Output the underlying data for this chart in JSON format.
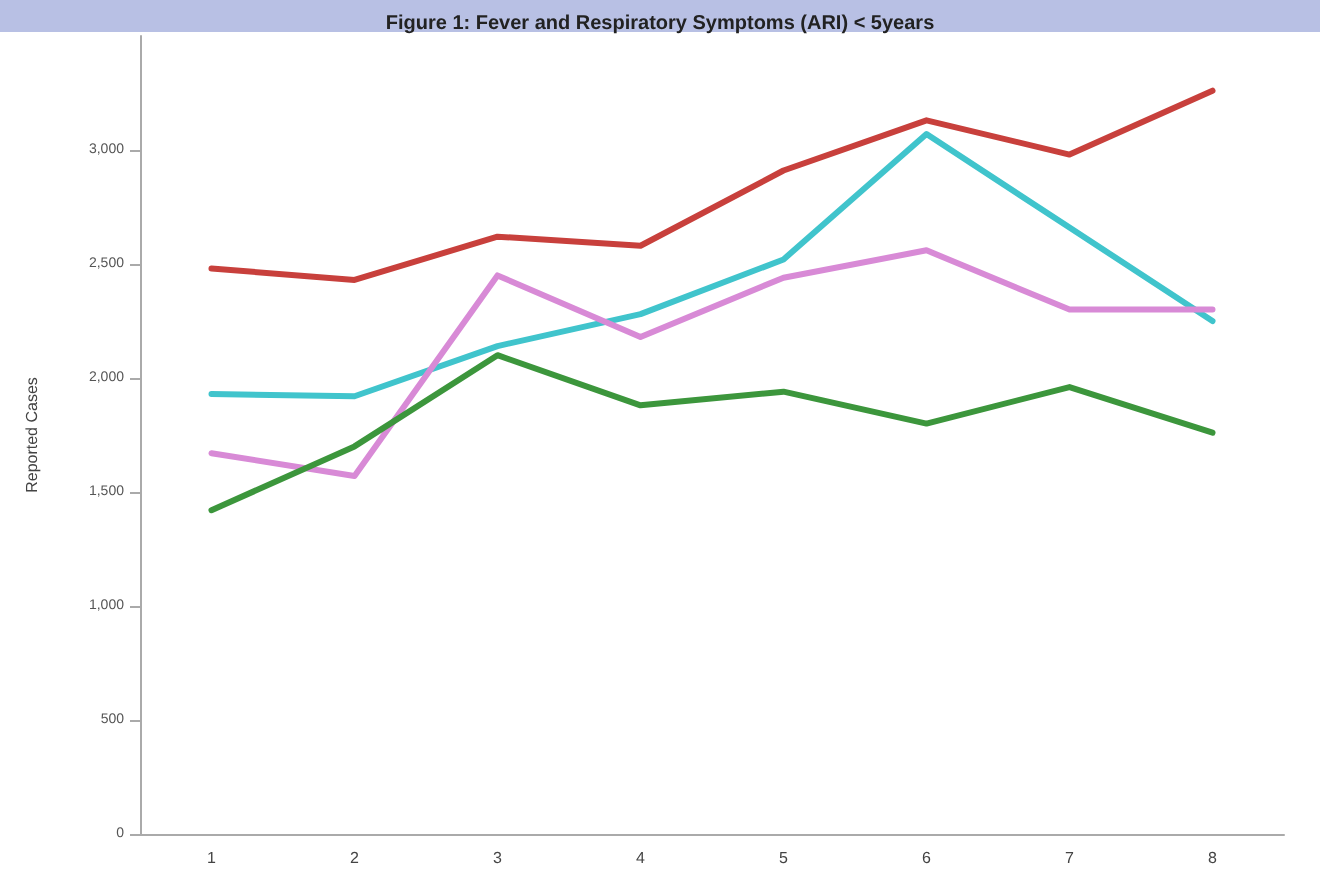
{
  "chart_data": {
    "type": "line",
    "title": "Figure 1: Fever and Respiratory Symptoms (ARI) < 5years",
    "ylabel": "Reported Cases",
    "categories": [
      "1",
      "2",
      "3",
      "4",
      "5",
      "6",
      "7",
      "8"
    ],
    "series": [
      {
        "color": "#c8403c",
        "values": [
          2480,
          2430,
          2620,
          2580,
          2910,
          3130,
          2980,
          3260
        ]
      },
      {
        "color": "#40c4cc",
        "values": [
          1930,
          1920,
          2140,
          2280,
          2520,
          3070,
          2660,
          2250
        ]
      },
      {
        "color": "#d88ad6",
        "values": [
          1670,
          1570,
          2450,
          2180,
          2440,
          2560,
          2300,
          2300
        ]
      },
      {
        "color": "#3c963c",
        "values": [
          1420,
          1700,
          2100,
          1880,
          1940,
          1800,
          1960,
          1760
        ]
      }
    ],
    "ylim": [
      0,
      3500
    ],
    "yticks": [
      {
        "value": 0,
        "label": "0"
      },
      {
        "value": 500,
        "label": "500"
      },
      {
        "value": 1000,
        "label": "1,000"
      },
      {
        "value": 1500,
        "label": "1,500"
      },
      {
        "value": 2000,
        "label": "2,000"
      },
      {
        "value": 2500,
        "label": "2,500"
      },
      {
        "value": 3000,
        "label": "3,000"
      }
    ],
    "grid": false,
    "marker": "none",
    "line_style": "solid"
  }
}
